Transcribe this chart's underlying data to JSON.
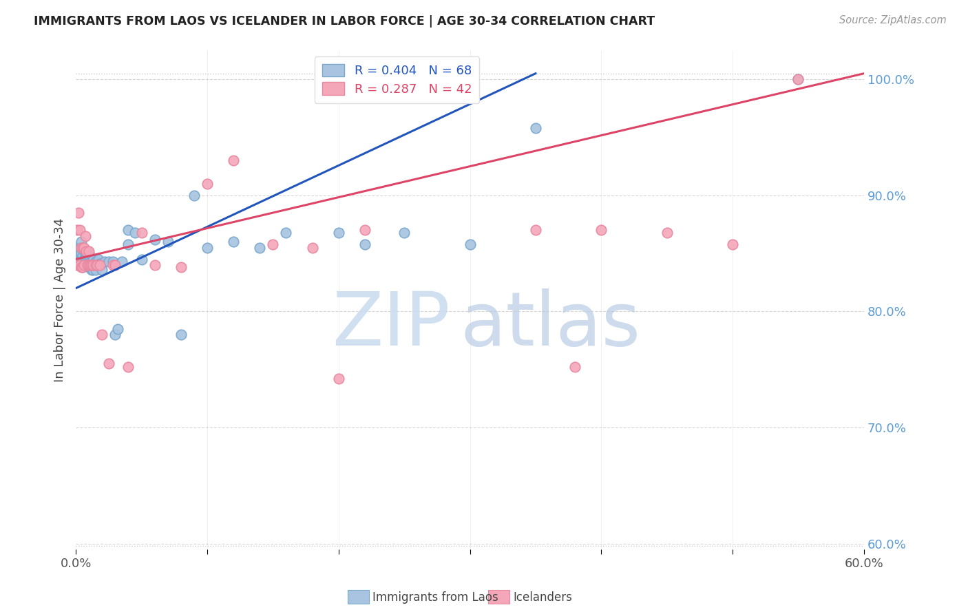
{
  "title": "IMMIGRANTS FROM LAOS VS ICELANDER IN LABOR FORCE | AGE 30-34 CORRELATION CHART",
  "source": "Source: ZipAtlas.com",
  "ylabel": "In Labor Force | Age 30-34",
  "blue_label": "Immigrants from Laos",
  "pink_label": "Icelanders",
  "blue_R": 0.404,
  "blue_N": 68,
  "pink_R": 0.287,
  "pink_N": 42,
  "blue_color": "#a8c4e0",
  "pink_color": "#f4a7b9",
  "blue_edge_color": "#7aa8cc",
  "pink_edge_color": "#e888a0",
  "blue_line_color": "#2255bb",
  "pink_line_color": "#dd4466",
  "yaxis_color": "#5b9bd5",
  "title_color": "#222222",
  "xlim": [
    0.0,
    0.6
  ],
  "ylim": [
    0.595,
    1.025
  ],
  "yticks": [
    0.6,
    0.7,
    0.8,
    0.9,
    1.0
  ],
  "ytick_labels": [
    "60.0%",
    "70.0%",
    "80.0%",
    "90.0%",
    "100.0%"
  ],
  "xticks": [
    0.0,
    0.1,
    0.2,
    0.3,
    0.4,
    0.5,
    0.6
  ],
  "xtick_labels": [
    "0.0%",
    "",
    "",
    "",
    "",
    "",
    "60.0%"
  ],
  "blue_x": [
    0.001,
    0.001,
    0.002,
    0.002,
    0.003,
    0.003,
    0.003,
    0.003,
    0.004,
    0.004,
    0.004,
    0.004,
    0.005,
    0.005,
    0.005,
    0.005,
    0.006,
    0.006,
    0.006,
    0.007,
    0.007,
    0.007,
    0.008,
    0.008,
    0.008,
    0.009,
    0.009,
    0.009,
    0.01,
    0.01,
    0.01,
    0.011,
    0.011,
    0.012,
    0.012,
    0.013,
    0.013,
    0.014,
    0.015,
    0.015,
    0.016,
    0.017,
    0.018,
    0.02,
    0.022,
    0.025,
    0.028,
    0.03,
    0.032,
    0.035,
    0.04,
    0.04,
    0.045,
    0.05,
    0.06,
    0.07,
    0.08,
    0.09,
    0.1,
    0.12,
    0.14,
    0.16,
    0.2,
    0.22,
    0.25,
    0.3,
    0.35,
    0.55
  ],
  "blue_y": [
    0.845,
    0.855,
    0.84,
    0.85,
    0.84,
    0.845,
    0.85,
    0.855,
    0.84,
    0.845,
    0.85,
    0.86,
    0.838,
    0.842,
    0.848,
    0.855,
    0.84,
    0.845,
    0.852,
    0.84,
    0.846,
    0.852,
    0.84,
    0.846,
    0.852,
    0.84,
    0.846,
    0.852,
    0.838,
    0.844,
    0.85,
    0.84,
    0.846,
    0.836,
    0.844,
    0.836,
    0.844,
    0.84,
    0.836,
    0.843,
    0.84,
    0.845,
    0.841,
    0.836,
    0.843,
    0.843,
    0.843,
    0.78,
    0.785,
    0.843,
    0.858,
    0.87,
    0.868,
    0.845,
    0.862,
    0.86,
    0.78,
    0.9,
    0.855,
    0.86,
    0.855,
    0.868,
    0.868,
    0.858,
    0.868,
    0.858,
    0.958,
    1.0
  ],
  "pink_x": [
    0.001,
    0.001,
    0.002,
    0.003,
    0.003,
    0.004,
    0.004,
    0.005,
    0.005,
    0.006,
    0.006,
    0.007,
    0.008,
    0.009,
    0.01,
    0.01,
    0.011,
    0.012,
    0.013,
    0.015,
    0.016,
    0.018,
    0.02,
    0.025,
    0.028,
    0.03,
    0.04,
    0.05,
    0.06,
    0.08,
    0.1,
    0.12,
    0.15,
    0.18,
    0.2,
    0.22,
    0.35,
    0.38,
    0.4,
    0.45,
    0.5,
    0.55
  ],
  "pink_y": [
    0.84,
    0.87,
    0.885,
    0.84,
    0.87,
    0.838,
    0.855,
    0.838,
    0.855,
    0.84,
    0.855,
    0.865,
    0.852,
    0.84,
    0.84,
    0.852,
    0.84,
    0.84,
    0.84,
    0.84,
    0.84,
    0.84,
    0.78,
    0.755,
    0.84,
    0.84,
    0.752,
    0.868,
    0.84,
    0.838,
    0.91,
    0.93,
    0.858,
    0.855,
    0.742,
    0.87,
    0.87,
    0.752,
    0.87,
    0.868,
    0.858,
    1.0
  ],
  "blue_line_x0": 0.0,
  "blue_line_y0": 0.82,
  "blue_line_x1": 0.35,
  "blue_line_y1": 1.005,
  "pink_line_x0": 0.0,
  "pink_line_y0": 0.845,
  "pink_line_x1": 0.6,
  "pink_line_y1": 1.005,
  "watermark_zip": "ZIP",
  "watermark_atlas": "atlas",
  "background_color": "#ffffff"
}
